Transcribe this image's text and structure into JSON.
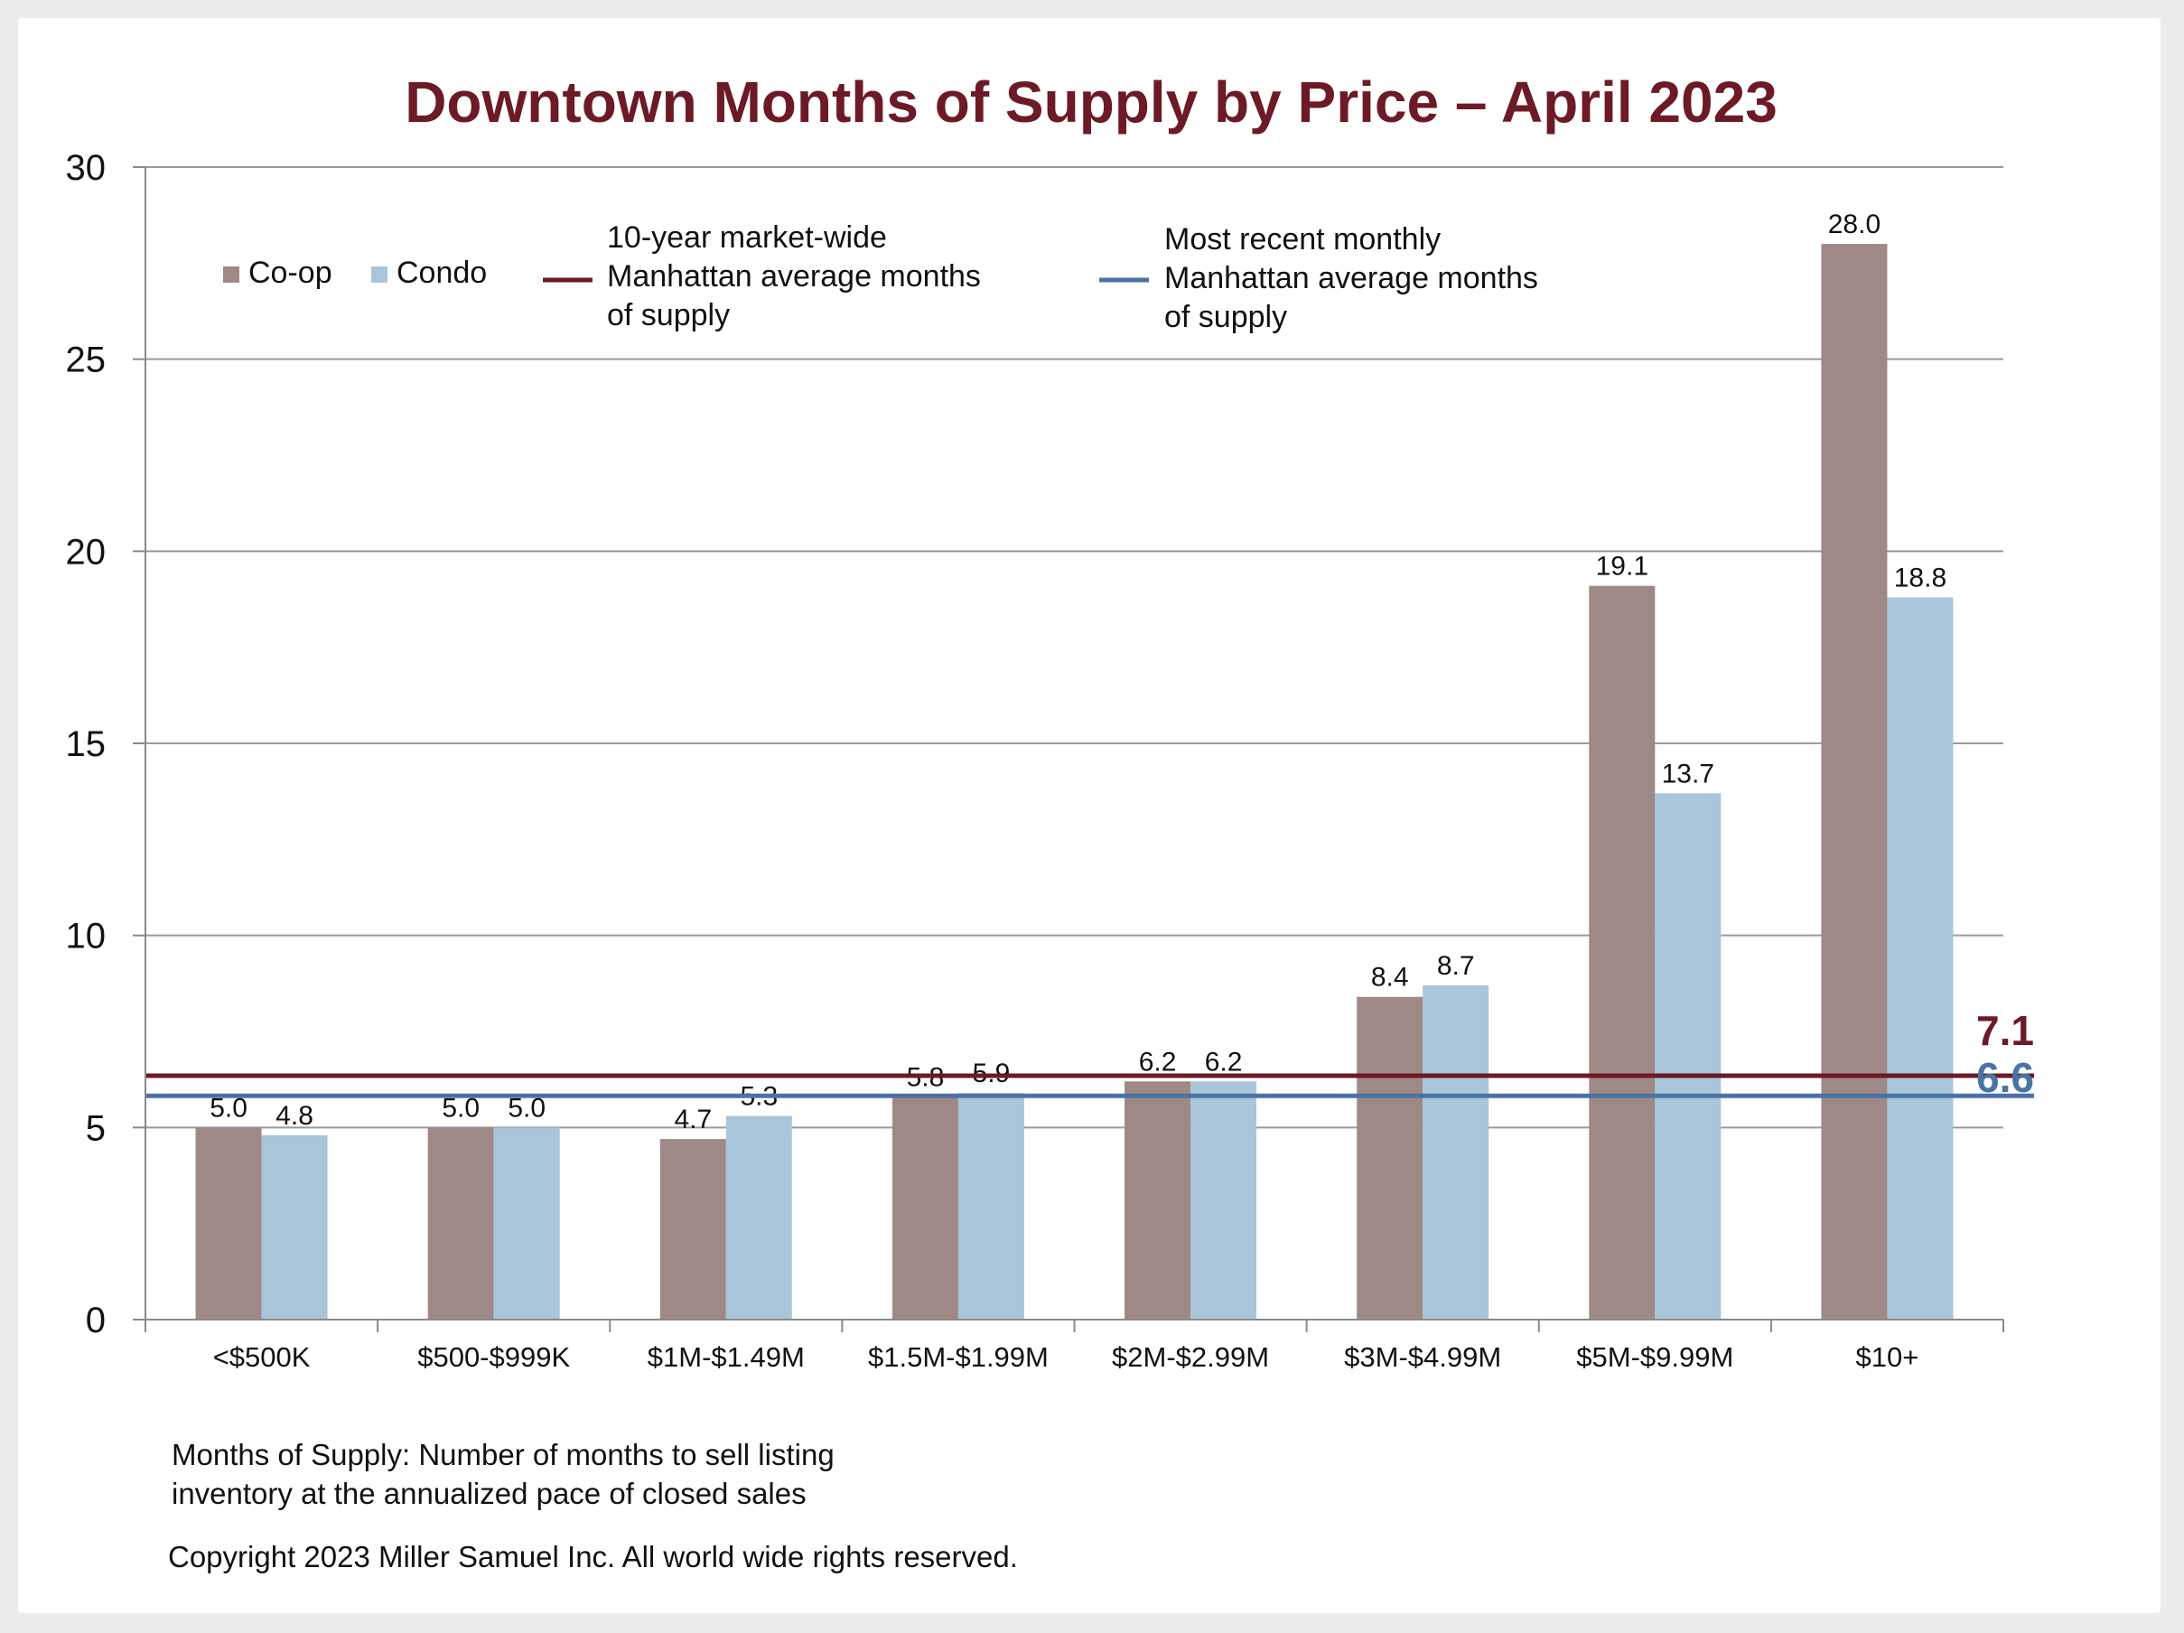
{
  "chart_data": {
    "type": "bar",
    "title": "Downtown Months of Supply by Price – April 2023",
    "xlabel": "",
    "ylabel": "",
    "ylim": [
      0,
      30
    ],
    "yticks": [
      "0",
      "5",
      "10",
      "15",
      "20",
      "25",
      "30"
    ],
    "categories": [
      "<$500K",
      "$500-$999K",
      "$1M-$1.49M",
      "$1.5M-$1.99M",
      "$2M-$2.99M",
      "$3M-$4.99M",
      "$5M-$9.99M",
      "$10+"
    ],
    "series": [
      {
        "name": "Co-op",
        "color": "#9e8987",
        "values": [
          5.0,
          5.0,
          4.7,
          5.8,
          6.2,
          8.4,
          19.1,
          28.0
        ],
        "labels": [
          "5.0",
          "5.0",
          "4.7",
          "5.8",
          "6.2",
          "8.4",
          "19.1",
          "28.0"
        ]
      },
      {
        "name": "Condo",
        "color": "#a9c5da",
        "values": [
          4.8,
          5.0,
          5.3,
          5.9,
          6.2,
          8.7,
          13.7,
          18.8
        ],
        "labels": [
          "4.8",
          "5.0",
          "5.3",
          "5.9",
          "6.2",
          "8.7",
          "13.7",
          "18.8"
        ]
      }
    ],
    "reference_lines": [
      {
        "name_lines": [
          "10-year market-wide",
          "Manhattan average months",
          "of supply"
        ],
        "value": 7.1,
        "label": "7.1",
        "color": "#6b1a26"
      },
      {
        "name_lines": [
          "Most recent monthly",
          "Manhattan average months",
          "of supply"
        ],
        "value": 6.6,
        "label": "6.6",
        "color": "#4a73a3"
      }
    ],
    "grid": true,
    "legend_position": "top-left"
  },
  "footnote": {
    "line1": "Months of Supply: Number of months to sell listing",
    "line2": "inventory at the annualized pace of closed sales"
  },
  "copyright": "Copyright 2023 Miller Samuel Inc.  All world wide rights reserved."
}
